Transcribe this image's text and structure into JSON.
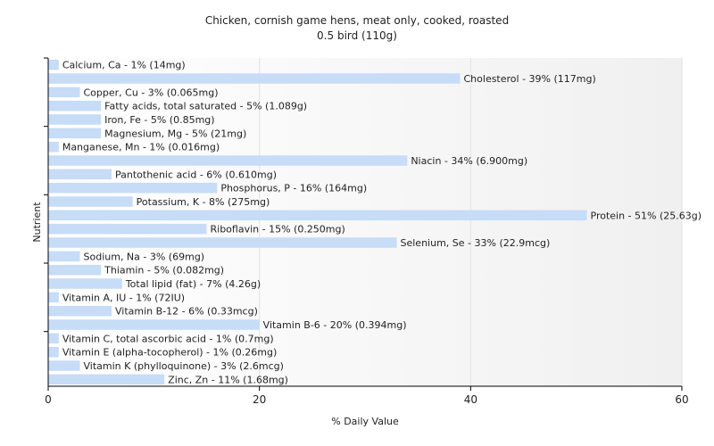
{
  "chart_data": {
    "type": "bar",
    "orientation": "horizontal",
    "title": "Chicken, cornish game hens, meat only, cooked, roasted",
    "subtitle": "0.5 bird (110g)",
    "xlabel": "% Daily Value",
    "ylabel": "Nutrient",
    "xlim": [
      0,
      60
    ],
    "xticks": [
      "0",
      "20",
      "40",
      "60"
    ],
    "grid": true,
    "bar_color": "#c6dcf7",
    "categories": [
      "Calcium, Ca",
      "Cholesterol",
      "Copper, Cu",
      "Fatty acids, total saturated",
      "Iron, Fe",
      "Magnesium, Mg",
      "Manganese, Mn",
      "Niacin",
      "Pantothenic acid",
      "Phosphorus, P",
      "Potassium, K",
      "Protein",
      "Riboflavin",
      "Selenium, Se",
      "Sodium, Na",
      "Thiamin",
      "Total lipid (fat)",
      "Vitamin A, IU",
      "Vitamin B-12",
      "Vitamin B-6",
      "Vitamin C, total ascorbic acid",
      "Vitamin E (alpha-tocopherol)",
      "Vitamin K (phylloquinone)",
      "Zinc, Zn"
    ],
    "values": [
      1,
      39,
      3,
      5,
      5,
      5,
      1,
      34,
      6,
      16,
      8,
      51,
      15,
      33,
      3,
      5,
      7,
      1,
      6,
      20,
      1,
      1,
      3,
      11
    ],
    "labels": [
      "Calcium, Ca - 1% (14mg)",
      "Cholesterol - 39% (117mg)",
      "Copper, Cu - 3% (0.065mg)",
      "Fatty acids, total saturated - 5% (1.089g)",
      "Iron, Fe - 5% (0.85mg)",
      "Magnesium, Mg - 5% (21mg)",
      "Manganese, Mn - 1% (0.016mg)",
      "Niacin - 34% (6.900mg)",
      "Pantothenic acid - 6% (0.610mg)",
      "Phosphorus, P - 16% (164mg)",
      "Potassium, K - 8% (275mg)",
      "Protein - 51% (25.63g)",
      "Riboflavin - 15% (0.250mg)",
      "Selenium, Se - 33% (22.9mcg)",
      "Sodium, Na - 3% (69mg)",
      "Thiamin - 5% (0.082mg)",
      "Total lipid (fat) - 7% (4.26g)",
      "Vitamin A, IU - 1% (72IU)",
      "Vitamin B-12 - 6% (0.33mcg)",
      "Vitamin B-6 - 20% (0.394mg)",
      "Vitamin C, total ascorbic acid - 1% (0.7mg)",
      "Vitamin E (alpha-tocopherol) - 1% (0.26mg)",
      "Vitamin K (phylloquinone) - 3% (2.6mcg)",
      "Zinc, Zn - 11% (1.68mg)"
    ]
  }
}
